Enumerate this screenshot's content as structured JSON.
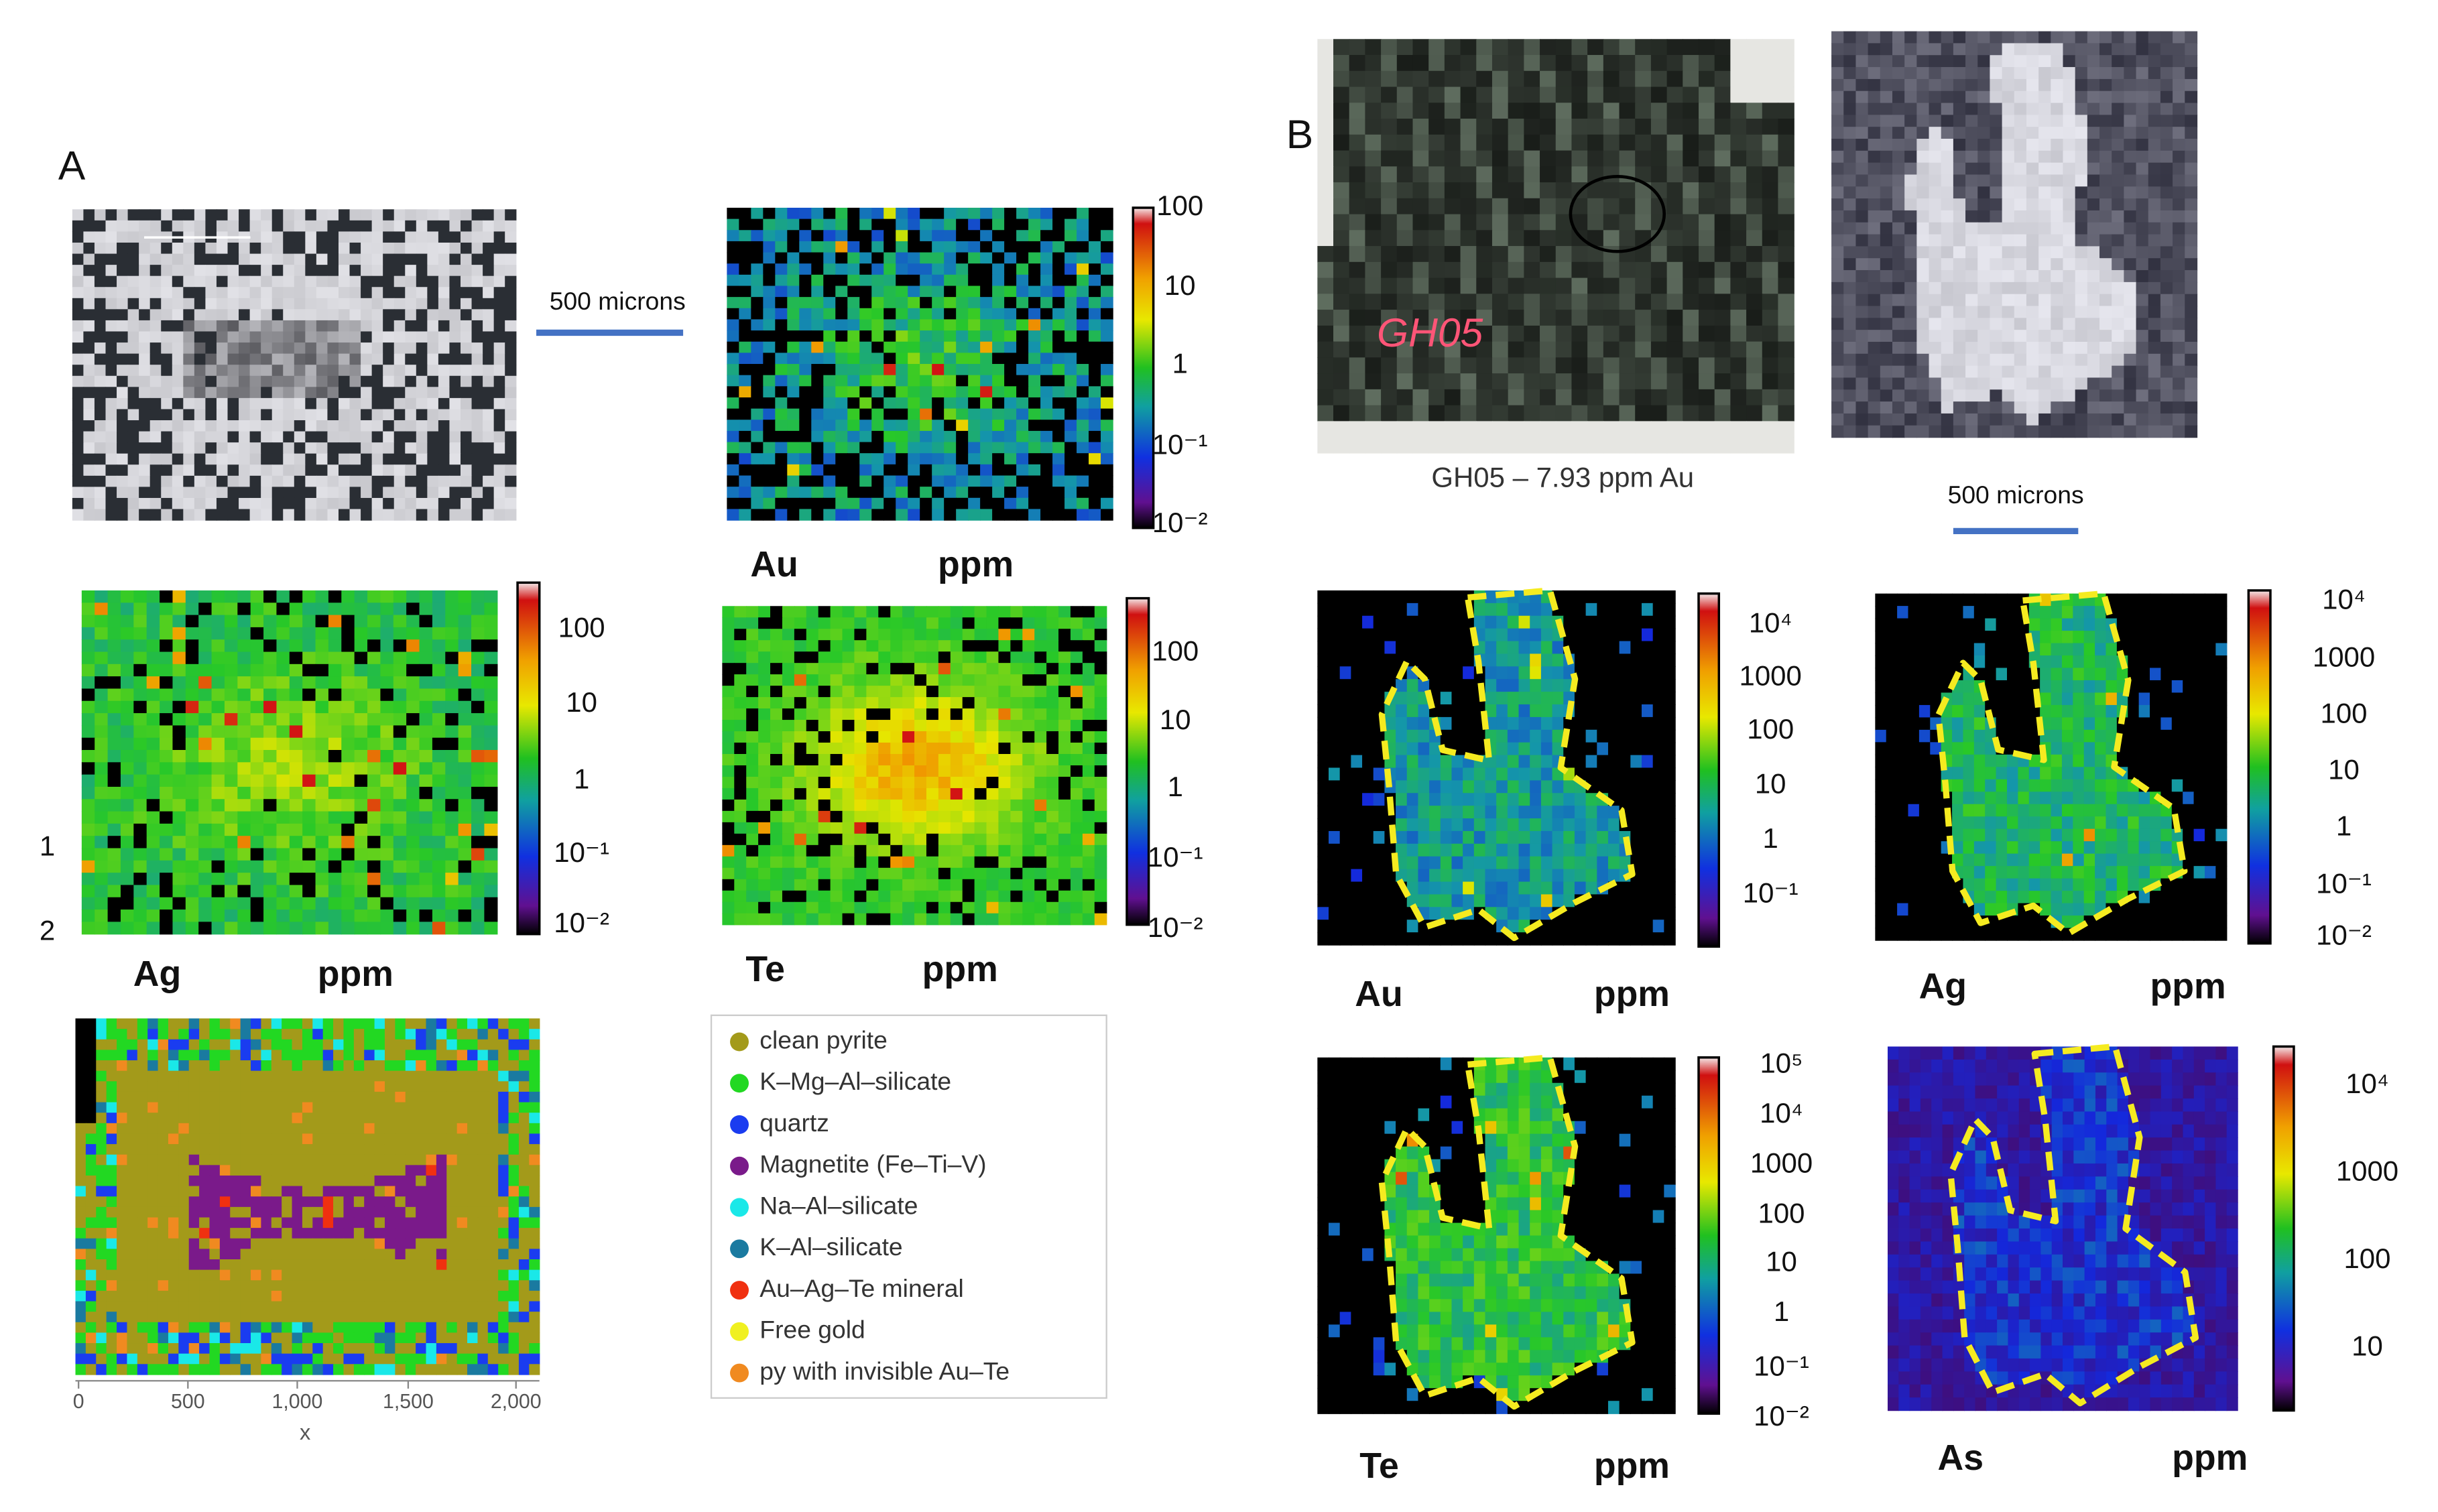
{
  "panel_a": {
    "label": "A",
    "scale_bar": "500 microns",
    "row_labels": [
      "1",
      "2"
    ],
    "maps": [
      {
        "element": "Au",
        "unit": "ppm",
        "colorbar_ticks": [
          "100",
          "10",
          "1",
          "10⁻¹",
          "10⁻²"
        ]
      },
      {
        "element": "Ag",
        "unit": "ppm",
        "colorbar_ticks": [
          "100",
          "10",
          "1",
          "10⁻¹",
          "10⁻²"
        ]
      },
      {
        "element": "Te",
        "unit": "ppm",
        "colorbar_ticks": [
          "100",
          "10",
          "1",
          "10⁻¹",
          "10⁻²"
        ]
      }
    ],
    "mineral_map": {
      "x_ticks": [
        "0",
        "500",
        "1,000",
        "1,500",
        "2,000"
      ],
      "x_label": "x",
      "legend": [
        {
          "label": "clean pyrite",
          "color": "#a39a1a"
        },
        {
          "label": "K–Mg–Al–silicate",
          "color": "#22d822"
        },
        {
          "label": "quartz",
          "color": "#1a3cf0"
        },
        {
          "label": "Magnetite (Fe–Ti–V)",
          "color": "#7a1a8a"
        },
        {
          "label": "Na–Al–silicate",
          "color": "#1ae8e8"
        },
        {
          "label": "K–Al–silicate",
          "color": "#1a7aa0"
        },
        {
          "label": "Au–Ag–Te mineral",
          "color": "#f03010"
        },
        {
          "label": "Free gold",
          "color": "#f0f020"
        },
        {
          "label": "py with invisible Au–Te",
          "color": "#f08a20"
        }
      ]
    }
  },
  "panel_b": {
    "label": "B",
    "sample_label": "GH05",
    "sample_caption": "GH05 – 7.93 ppm Au",
    "scale_bar": "500 microns",
    "maps": [
      {
        "element": "Au",
        "unit": "ppm",
        "colorbar_ticks": [
          "10⁴",
          "1000",
          "100",
          "10",
          "1",
          "10⁻¹"
        ]
      },
      {
        "element": "Ag",
        "unit": "ppm",
        "colorbar_ticks": [
          "10⁴",
          "1000",
          "100",
          "10",
          "1",
          "10⁻¹",
          "10⁻²"
        ]
      },
      {
        "element": "Te",
        "unit": "ppm",
        "colorbar_ticks": [
          "10⁵",
          "10⁴",
          "1000",
          "100",
          "10",
          "1",
          "10⁻¹",
          "10⁻²"
        ]
      },
      {
        "element": "As",
        "unit": "ppm",
        "colorbar_ticks": [
          "10⁴",
          "1000",
          "100",
          "10"
        ]
      }
    ]
  }
}
